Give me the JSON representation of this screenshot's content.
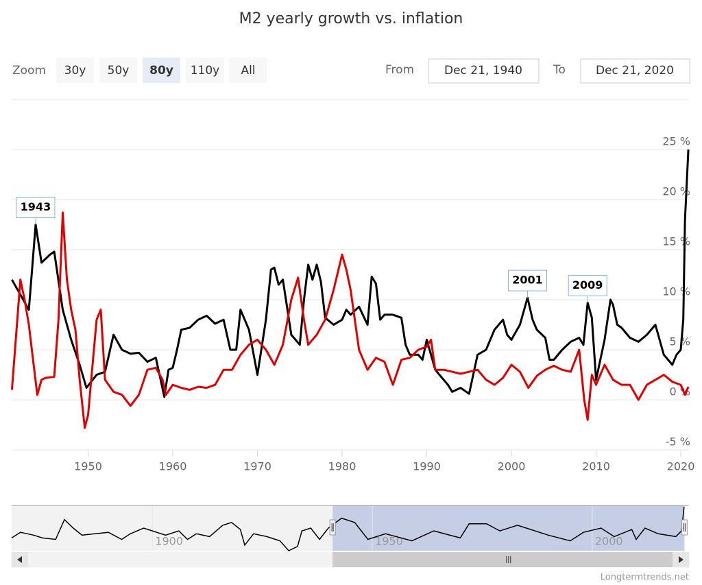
{
  "chart_data": {
    "type": "line",
    "title": "M2 yearly growth vs. inflation",
    "zoom": {
      "label": "Zoom",
      "buttons": [
        "30y",
        "50y",
        "80y",
        "110y",
        "All"
      ],
      "selected": 2
    },
    "range": {
      "from_label": "From",
      "from": "Dec 21, 1940",
      "to_label": "To",
      "to": "Dec 21, 2020"
    },
    "xlim": [
      1940.97,
      2020.97
    ],
    "xticks": [
      1950,
      1960,
      1970,
      1980,
      1990,
      2000,
      2010,
      2020
    ],
    "ylim": [
      -5,
      30
    ],
    "yticks": [
      {
        "value": -5,
        "label": "-5 %"
      },
      {
        "value": 0,
        "label": "0 %"
      },
      {
        "value": 5,
        "label": "5 %"
      },
      {
        "value": 10,
        "label": "10 %"
      },
      {
        "value": 15,
        "label": "15 %"
      },
      {
        "value": 20,
        "label": "20 %"
      },
      {
        "value": 25,
        "label": "25 %"
      }
    ],
    "grid": true,
    "series": [
      {
        "color": "#000000",
        "x": [
          1941,
          1942,
          1943,
          1943.8,
          1944.5,
          1945.5,
          1946,
          1947,
          1948,
          1949,
          1949.8,
          1951,
          1952,
          1953,
          1954,
          1955,
          1956,
          1957,
          1958,
          1959,
          1959.5,
          1960,
          1960.5,
          1961,
          1962,
          1963,
          1964,
          1965,
          1966,
          1966.8,
          1967.5,
          1968,
          1969,
          1970,
          1971,
          1971.6,
          1972,
          1972.5,
          1973,
          1974,
          1975,
          1975.5,
          1976,
          1976.5,
          1977,
          1977.5,
          1978,
          1979,
          1980,
          1980.5,
          1981,
          1982,
          1983,
          1983.5,
          1984,
          1984.5,
          1985,
          1986,
          1987,
          1987.5,
          1988,
          1989,
          1989.5,
          1990,
          1990.5,
          1991,
          1992,
          1992.5,
          1993,
          1994,
          1995,
          1996,
          1997,
          1998,
          1999,
          1999.5,
          2000,
          2001,
          2001.9,
          2002.5,
          2003,
          2004,
          2004.5,
          2005,
          2006,
          2007,
          2008,
          2008.5,
          2009,
          2009.5,
          2010,
          2011,
          2011.7,
          2012,
          2012.5,
          2013,
          2014,
          2015,
          2016,
          2017,
          2018,
          2019,
          2019.5,
          2020,
          2020.3,
          2020.5,
          2020.9
        ],
        "values": [
          12,
          10.5,
          9,
          17.5,
          13.7,
          14.5,
          14.8,
          9,
          6,
          3.5,
          1.2,
          2.5,
          2.8,
          6.5,
          5,
          4.6,
          4.7,
          3.8,
          4.2,
          0.3,
          3,
          3.2,
          5,
          7,
          7.2,
          8,
          8.4,
          7.6,
          8,
          5,
          5,
          9,
          7,
          2.5,
          8,
          13,
          13.2,
          11.5,
          12,
          6.5,
          5.5,
          10,
          13.5,
          12,
          13.5,
          11.8,
          8.2,
          7.5,
          8,
          9,
          8.5,
          9.3,
          7.5,
          12.3,
          11.6,
          8,
          8.5,
          8.5,
          8.2,
          5.5,
          4.5,
          4.5,
          4,
          6,
          4.5,
          3,
          2,
          1.5,
          0.8,
          1.2,
          0.6,
          4.5,
          5,
          7,
          8,
          6.5,
          6,
          7.5,
          10.2,
          8,
          7,
          6.2,
          4,
          4,
          5,
          5.8,
          6.2,
          5.5,
          9.7,
          8.2,
          2,
          6,
          10,
          9.5,
          7.5,
          7.2,
          6.2,
          5.8,
          6.5,
          7.5,
          4.5,
          3.5,
          4.5,
          5,
          8,
          18,
          25
        ]
      },
      {
        "color": "#e00000",
        "x": [
          1941,
          1942,
          1942.5,
          1943,
          1943.5,
          1944,
          1944.5,
          1945,
          1946,
          1946.5,
          1947,
          1947.5,
          1948,
          1948.5,
          1949,
          1949.6,
          1950,
          1951,
          1951.5,
          1952,
          1953,
          1954,
          1955,
          1956,
          1957,
          1958,
          1958.8,
          1959.2,
          1960,
          1961,
          1962,
          1963,
          1964,
          1965,
          1966,
          1967,
          1968,
          1969,
          1970,
          1971,
          1972,
          1973,
          1974,
          1974.8,
          1975.5,
          1976,
          1977,
          1978,
          1979,
          1980,
          1980.5,
          1981,
          1982,
          1983,
          1984,
          1985,
          1986,
          1987,
          1988,
          1989,
          1990,
          1990.5,
          1991,
          1992,
          1993,
          1994,
          1995,
          1996,
          1997,
          1998,
          1999,
          2000,
          2001,
          2002,
          2003,
          2004,
          2005,
          2006,
          2007,
          2008,
          2008.6,
          2009,
          2009.5,
          2010,
          2011,
          2012,
          2013,
          2014,
          2015,
          2016,
          2017,
          2018,
          2019,
          2020,
          2020.5,
          2020.9
        ],
        "values": [
          1,
          12,
          10,
          7.5,
          4,
          0.5,
          2,
          2.2,
          2.3,
          8,
          18.7,
          12,
          9,
          7,
          2,
          -2.8,
          -1.5,
          8,
          9,
          2,
          0.8,
          0.5,
          -0.6,
          0.5,
          3,
          3.2,
          2,
          0.5,
          1.5,
          1.2,
          1,
          1.3,
          1.2,
          1.5,
          3,
          3,
          4.5,
          5.5,
          6,
          5,
          3.5,
          5.5,
          10,
          12.2,
          8,
          5.5,
          6.5,
          8,
          11,
          14.5,
          13,
          11,
          5,
          3,
          4.2,
          3.8,
          1.5,
          4,
          4.2,
          5,
          5.3,
          6,
          3,
          3,
          2.8,
          2.6,
          2.8,
          3,
          2,
          1.5,
          2.2,
          3.5,
          2.8,
          1.2,
          2.4,
          3,
          3.4,
          3,
          2.8,
          5,
          0,
          -2,
          2.5,
          1.5,
          3.5,
          2,
          1.5,
          1.5,
          0,
          1.5,
          2,
          2.5,
          1.8,
          1.5,
          0.5,
          1.3
        ]
      }
    ],
    "flags": [
      {
        "label": "1943",
        "x": 1943.8,
        "y": 17.5
      },
      {
        "label": "2001",
        "x": 2001.9,
        "y": 10.2
      },
      {
        "label": "2009",
        "x": 2009,
        "y": 9.7
      }
    ],
    "navigator": {
      "xlim": [
        1868,
        2022
      ],
      "ylim": [
        -6,
        26
      ],
      "xticks": [
        1900,
        1950,
        2000
      ],
      "selected": [
        1940.97,
        2020.97
      ],
      "x": [
        1868,
        1870,
        1873,
        1875,
        1878,
        1880,
        1882,
        1884,
        1887,
        1890,
        1893,
        1895,
        1898,
        1900,
        1903,
        1906,
        1908,
        1910,
        1913,
        1916,
        1918,
        1920,
        1921,
        1923,
        1926,
        1929,
        1931,
        1933,
        1934,
        1936,
        1938,
        1940,
        1943,
        1946,
        1949,
        1953,
        1959,
        1964,
        1970,
        1972,
        1976,
        1979,
        1983,
        1990,
        1995,
        1998,
        2002,
        2005,
        2009,
        2010,
        2012,
        2015,
        2019,
        2020.3,
        2020.9
      ],
      "values": [
        3,
        7,
        5,
        3,
        2,
        16,
        10,
        5,
        6,
        7,
        2,
        6,
        10,
        8,
        5,
        8,
        2,
        6,
        4,
        12,
        14,
        9,
        -2,
        6,
        4,
        1,
        -6,
        -3,
        8,
        10,
        2,
        10,
        17,
        14,
        2,
        6,
        1,
        8,
        3,
        13,
        13,
        8,
        12,
        5,
        1,
        7,
        10,
        4,
        9,
        2,
        10,
        6,
        4,
        8,
        25
      ]
    },
    "credits": "Longtermtrends.net"
  }
}
